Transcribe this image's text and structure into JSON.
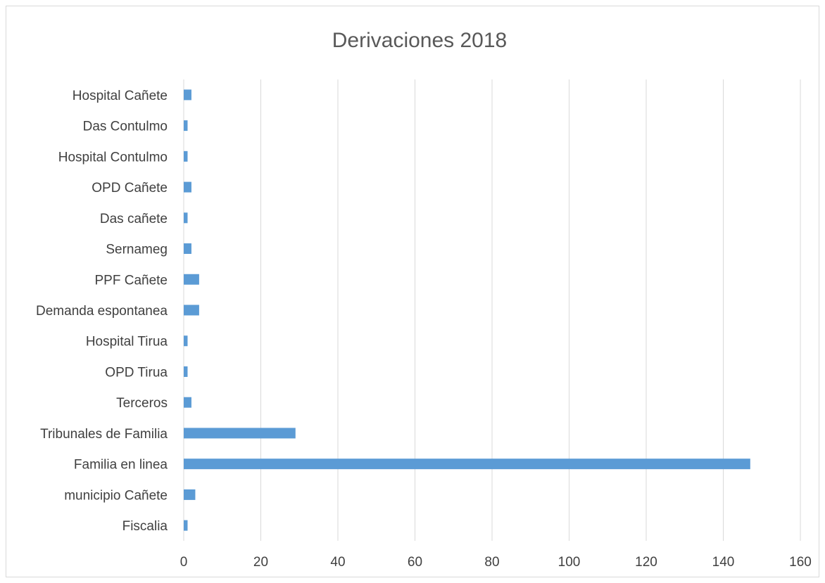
{
  "chart_data": {
    "type": "bar",
    "orientation": "horizontal",
    "title": "Derivaciones 2018",
    "categories": [
      "Hospital Cañete",
      "Das Contulmo",
      "Hospital Contulmo",
      "OPD Cañete",
      "Das cañete",
      "Sernameg",
      "PPF Cañete",
      "Demanda espontanea",
      "Hospital Tirua",
      "OPD Tirua",
      "Terceros",
      "Tribunales de Familia",
      "Familia en linea",
      "municipio Cañete",
      "Fiscalia"
    ],
    "values": [
      2,
      1,
      1,
      2,
      1,
      2,
      4,
      4,
      1,
      1,
      2,
      29,
      147,
      3,
      1
    ],
    "xlim": [
      0,
      160
    ],
    "xticks": [
      0,
      20,
      40,
      60,
      80,
      100,
      120,
      140,
      160
    ],
    "grid": "vertical",
    "legend": "none",
    "bar_color": "#5b9bd5",
    "grid_color": "#d9d9d9"
  }
}
